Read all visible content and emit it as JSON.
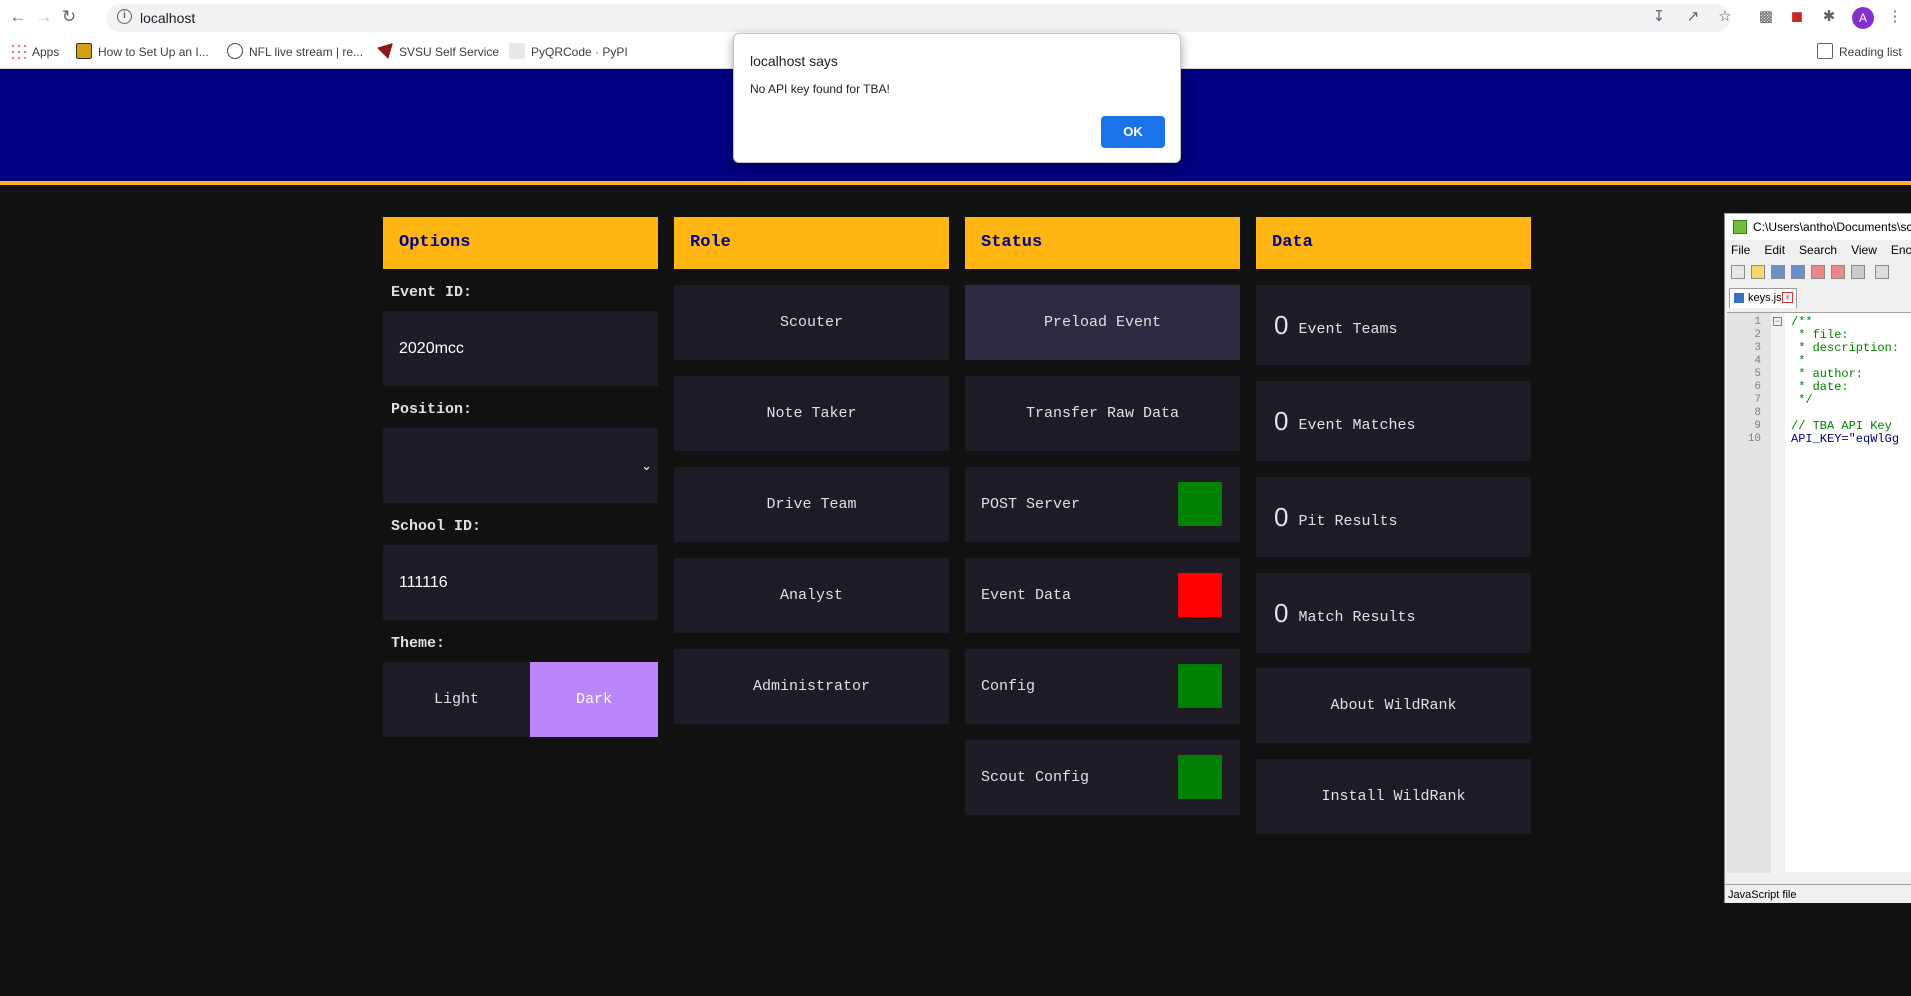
{
  "browser": {
    "url": "localhost",
    "bookmarks": [
      {
        "label": "Apps"
      },
      {
        "label": "How to Set Up an I..."
      },
      {
        "label": "NFL live stream | re..."
      },
      {
        "label": "SVSU Self Service"
      },
      {
        "label": "PyQRCode · PyPI"
      }
    ],
    "reading_list": "Reading list",
    "avatar_letter": "A"
  },
  "dialog": {
    "title": "localhost says",
    "message": "No API key found for TBA!",
    "ok": "OK"
  },
  "options": {
    "header": "Options",
    "event_id_label": "Event ID:",
    "event_id_value": "2020mcc",
    "position_label": "Position:",
    "position_value": "",
    "school_id_label": "School ID:",
    "school_id_value": "111116",
    "theme_label": "Theme:",
    "theme_light": "Light",
    "theme_dark": "Dark"
  },
  "role": {
    "header": "Role",
    "items": [
      "Scouter",
      "Note Taker",
      "Drive Team",
      "Analyst",
      "Administrator"
    ]
  },
  "status": {
    "header": "Status",
    "preload": "Preload Event",
    "transfer": "Transfer Raw Data",
    "items": [
      {
        "label": "POST Server",
        "color": "#008000"
      },
      {
        "label": "Event Data",
        "color": "#ff0000"
      },
      {
        "label": "Config",
        "color": "#008000"
      },
      {
        "label": "Scout Config",
        "color": "#008000"
      }
    ]
  },
  "data": {
    "header": "Data",
    "counts": [
      {
        "value": "0",
        "label": "Event Teams"
      },
      {
        "value": "0",
        "label": "Event Matches"
      },
      {
        "value": "0",
        "label": "Pit Results"
      },
      {
        "value": "0",
        "label": "Match Results"
      }
    ],
    "about": "About WildRank",
    "install": "Install WildRank"
  },
  "editor": {
    "title": "C:\\Users\\antho\\Documents\\sc",
    "menu": [
      "File",
      "Edit",
      "Search",
      "View",
      "Enco"
    ],
    "tab": "keys.js",
    "line_numbers": [
      "1",
      "2",
      "3",
      "4",
      "5",
      "6",
      "7",
      "8",
      "9",
      "10"
    ],
    "lines": [
      "/**",
      " * file:",
      " * description:",
      " *",
      " * author:",
      " * date:",
      " */",
      "",
      "// TBA API Key",
      "API_KEY=\"eqWlGg"
    ],
    "status": "JavaScript file"
  },
  "colors": {
    "banner": "#000080",
    "accent": "#ffb612",
    "tile": "#1e1a26",
    "dark_theme": "#bb86fc"
  }
}
